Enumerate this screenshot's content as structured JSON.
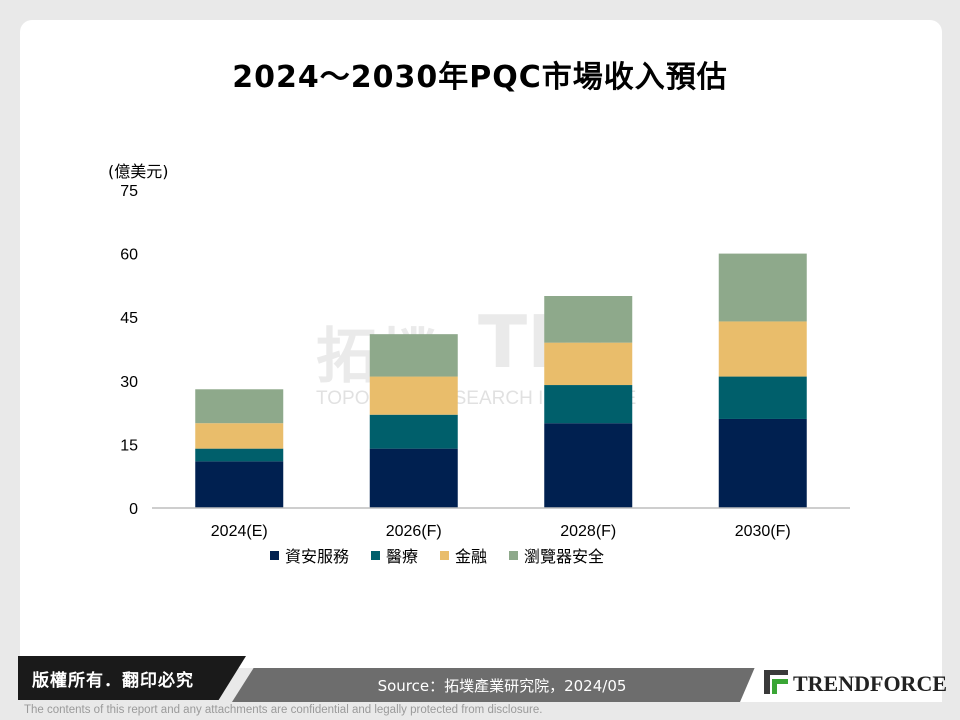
{
  "title": "2024～2030年PQC市場收入預估",
  "unit_label": "(億美元)",
  "watermark": {
    "chinese": "拓墣",
    "tri": "TRi",
    "english": "TOPOLOGY RESEARCH INSTITUTE"
  },
  "chart_data": {
    "type": "bar",
    "stacked": true,
    "categories": [
      "2024(E)",
      "2026(F)",
      "2028(F)",
      "2030(F)"
    ],
    "series": [
      {
        "name": "資安服務",
        "color": "#002050",
        "values": [
          11,
          14,
          20,
          21
        ]
      },
      {
        "name": "醫療",
        "color": "#005f6b",
        "values": [
          3,
          8,
          9,
          10
        ]
      },
      {
        "name": "金融",
        "color": "#e9bd6b",
        "values": [
          6,
          9,
          10,
          13
        ]
      },
      {
        "name": "瀏覽器安全",
        "color": "#8ea98b",
        "values": [
          8,
          10,
          11,
          16
        ]
      }
    ],
    "ylim": [
      0,
      75
    ],
    "yticks": [
      0,
      15,
      30,
      45,
      60,
      75
    ],
    "ylabel": "(億美元)",
    "xlabel": "",
    "grid": false,
    "legend": "bottom"
  },
  "footer": {
    "copyright": "版權所有．翻印必究",
    "source": "Source：拓墣產業研究院，2024/05",
    "logo_text": "TRENDFORCE",
    "disclaimer": "The contents of this report and any attachments are confidential and legally protected from disclosure."
  }
}
